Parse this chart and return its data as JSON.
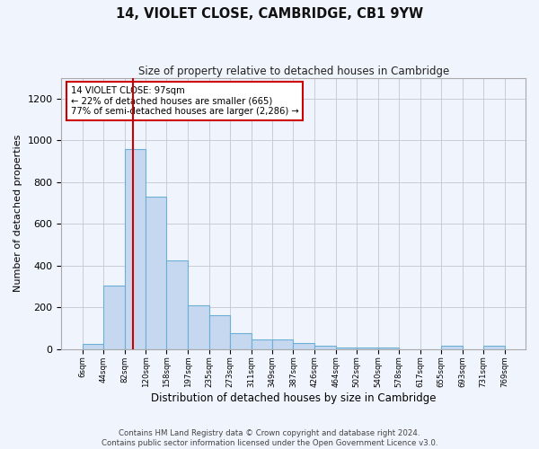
{
  "title": "14, VIOLET CLOSE, CAMBRIDGE, CB1 9YW",
  "subtitle": "Size of property relative to detached houses in Cambridge",
  "xlabel": "Distribution of detached houses by size in Cambridge",
  "ylabel": "Number of detached properties",
  "bar_color": "#c5d8f0",
  "bar_edge_color": "#6baed6",
  "marker_line_color": "#cc0000",
  "marker_value": 97,
  "annotation_line1": "14 VIOLET CLOSE: 97sqm",
  "annotation_line2": "← 22% of detached houses are smaller (665)",
  "annotation_line3": "77% of semi-detached houses are larger (2,286) →",
  "annotation_box_color": "#ffffff",
  "annotation_border_color": "#cc0000",
  "bin_edges": [
    6,
    44,
    82,
    120,
    158,
    197,
    235,
    273,
    311,
    349,
    387,
    426,
    464,
    502,
    540,
    578,
    617,
    655,
    693,
    731,
    769
  ],
  "bar_heights": [
    25,
    305,
    960,
    730,
    425,
    210,
    165,
    75,
    48,
    47,
    30,
    18,
    10,
    10,
    10,
    0,
    0,
    15,
    0,
    15
  ],
  "ylim": [
    0,
    1300
  ],
  "yticks": [
    0,
    200,
    400,
    600,
    800,
    1000,
    1200
  ],
  "footer_line1": "Contains HM Land Registry data © Crown copyright and database right 2024.",
  "footer_line2": "Contains public sector information licensed under the Open Government Licence v3.0.",
  "background_color": "#f0f4fc",
  "plot_bg_color": "#f0f4fc",
  "grid_color": "#c8ccd8"
}
